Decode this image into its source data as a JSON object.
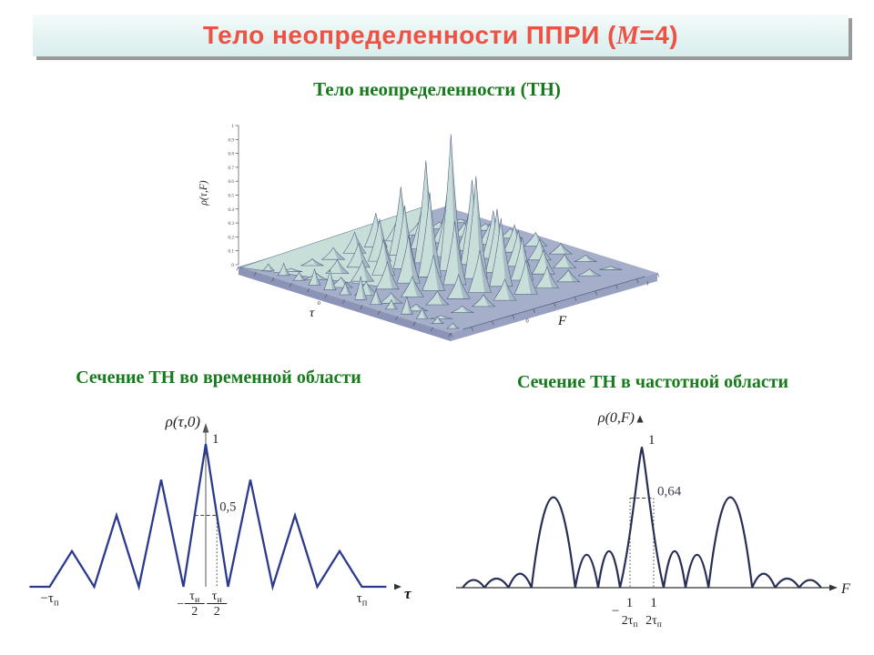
{
  "title": {
    "prefix": "Тело неопределенности ППРИ (",
    "m": "M",
    "suffix": "=4)"
  },
  "accent_colors": {
    "title_text": "#ee5244",
    "heading_green": "#177a1d"
  },
  "chart_data": [
    {
      "id": "ambiguity-body-3d",
      "type": "3d-surface",
      "heading": "Тело неопределенности (ТН)",
      "z_axis_label": "ρ(τ,F)",
      "tau_axis_label": "τ",
      "f_axis_label": "F",
      "z_tick_labels": [
        "1",
        "0.9",
        "0.8",
        "0.7",
        "0.6",
        "0.5",
        "0.4",
        "0.3",
        "0.2",
        "0.1",
        "0"
      ],
      "tau_tick_labels": [
        "0"
      ],
      "f_tick_labels": [
        "0",
        "1"
      ],
      "z_range": [
        0,
        1
      ],
      "tau_comb": [
        0.25,
        0.5,
        0.75,
        1,
        0.75,
        0.5,
        0.25
      ],
      "freq_comb": [
        0.1,
        0.2,
        0.35,
        0.62,
        1,
        0.62,
        0.35,
        0.2,
        0.1
      ],
      "front_row": [
        0.05,
        0.09,
        0.06,
        0.12,
        0.15,
        0.09,
        0.17,
        0.11,
        0.07,
        0.13,
        0.08,
        0.05,
        0.04
      ],
      "dome_height": 0.3,
      "colors": {
        "spike": "#c7ded9",
        "edge": "#4d5a80",
        "slab": "#a6afc9",
        "slab_side": "#8b94b6",
        "slab_side2": "#98a1bf",
        "shade": "rgba(96,112,148,0.32)"
      }
    },
    {
      "id": "time-domain-section",
      "type": "line",
      "heading": "Сечение ТН во временной области",
      "y_axis_label": "ρ(τ,0)",
      "x_axis_label": "τ",
      "peak_label": "1",
      "level": 0.5,
      "level_label": "0,5",
      "level_x": 0.25,
      "line_color": "#2b3a8c",
      "points": [
        [
          -3.95,
          0
        ],
        [
          -3.5,
          0
        ],
        [
          -3,
          0.25
        ],
        [
          -2.5,
          0
        ],
        [
          -2,
          0.5
        ],
        [
          -1.5,
          0
        ],
        [
          -1,
          0.75
        ],
        [
          -0.5,
          0
        ],
        [
          0,
          1
        ],
        [
          0.5,
          0
        ],
        [
          1,
          0.75
        ],
        [
          1.5,
          0
        ],
        [
          2,
          0.5
        ],
        [
          2.5,
          0
        ],
        [
          3,
          0.25
        ],
        [
          3.5,
          0
        ],
        [
          4.05,
          0
        ]
      ],
      "x_labels": [
        {
          "kind": "sub",
          "sign": "−",
          "base": "τ",
          "sub": "п",
          "x": -3.5
        },
        {
          "kind": "frac",
          "sign": "−",
          "num": "τ",
          "num_sub": "и",
          "den": "2",
          "bar": true,
          "x": -0.25
        },
        {
          "kind": "frac",
          "sign": "",
          "num": "τ",
          "num_sub": "и",
          "den": "2",
          "bar": true,
          "x": 0.25
        },
        {
          "kind": "sub",
          "sign": "",
          "base": "τ",
          "sub": "п",
          "x": 3.5
        }
      ]
    },
    {
      "id": "frequency-domain-section",
      "type": "line",
      "heading": "Сечение ТН в частотной области",
      "y_axis_label": "ρ(0,F)",
      "x_axis_label": "F",
      "peak_label": "1",
      "level": 0.64,
      "level_label": "0,64",
      "level_x": 0.54,
      "line_color": "#272f55",
      "lobes": [
        [
          -8.2,
          -7.2,
          0.055
        ],
        [
          -7.2,
          -6.1,
          0.065
        ],
        [
          -6.1,
          -5.05,
          0.1
        ],
        [
          -5.05,
          -3.05,
          0.645
        ],
        [
          -3.05,
          -2,
          0.235
        ],
        [
          -2,
          -1,
          0.26
        ],
        [
          -1,
          1,
          1
        ],
        [
          1,
          2,
          0.26
        ],
        [
          2,
          3.05,
          0.235
        ],
        [
          3.05,
          5.05,
          0.645
        ],
        [
          5.05,
          6.1,
          0.1
        ],
        [
          6.1,
          7.2,
          0.065
        ],
        [
          7.2,
          8.2,
          0.055
        ]
      ],
      "x_labels": [
        {
          "kind": "frac",
          "sign": "−",
          "num": "1",
          "den": "2τ",
          "den_sub": "п",
          "bar": false,
          "x": -0.56
        },
        {
          "kind": "frac",
          "sign": "",
          "num": "1",
          "den": "2τ",
          "den_sub": "п",
          "bar": false,
          "x": 0.54
        }
      ]
    }
  ]
}
